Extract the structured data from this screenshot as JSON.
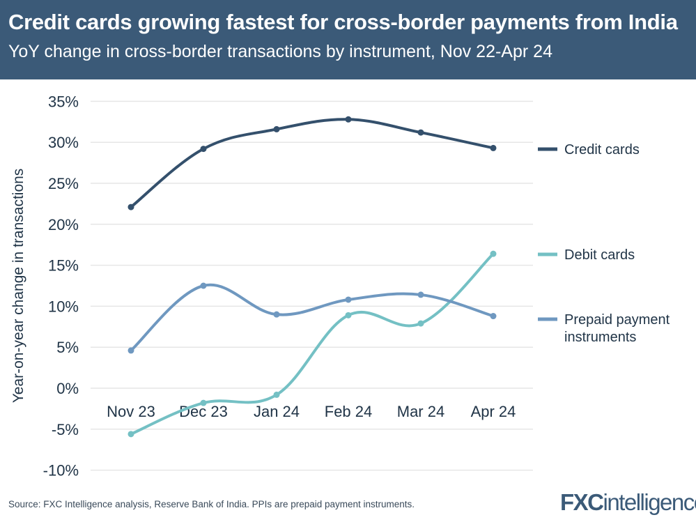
{
  "header": {
    "title": "Credit cards growing fastest for cross-border payments from India",
    "subtitle": "YoY change in cross-border transactions by instrument, Nov 22-Apr 24"
  },
  "chart_data": {
    "type": "line",
    "title": "Credit cards growing fastest for cross-border payments from India",
    "subtitle": "YoY change in cross-border transactions by instrument, Nov 22-Apr 24",
    "xlabel": "",
    "ylabel": "Year-on-year change in transactions",
    "categories": [
      "Nov 23",
      "Dec 23",
      "Jan 24",
      "Feb 24",
      "Mar 24",
      "Apr 24"
    ],
    "ylim": [
      -10,
      35
    ],
    "yticks": [
      35,
      30,
      25,
      20,
      15,
      10,
      5,
      0,
      -5,
      -10
    ],
    "ytick_labels": [
      "35%",
      "30%",
      "25%",
      "20%",
      "15%",
      "10%",
      "5%",
      "0%",
      "-5%",
      "-10%"
    ],
    "grid": true,
    "legend": "right (end labels)",
    "series": [
      {
        "name": "Credit cards",
        "color": "#34506c",
        "values": [
          22.1,
          29.2,
          31.6,
          32.8,
          31.2,
          29.3
        ]
      },
      {
        "name": "Debit cards",
        "color": "#74c0c4",
        "values": [
          -5.6,
          -1.8,
          -0.8,
          8.9,
          7.9,
          16.4
        ]
      },
      {
        "name": "Prepaid payment instruments",
        "color": "#6f98c0",
        "values": [
          4.6,
          12.5,
          9.0,
          10.8,
          11.4,
          8.8
        ]
      }
    ]
  },
  "footer": {
    "source": "Source: FXC Intelligence analysis, Reserve Bank of India. PPIs are prepaid payment instruments.",
    "logo_bold": "FXC",
    "logo_light": "intelligence"
  }
}
